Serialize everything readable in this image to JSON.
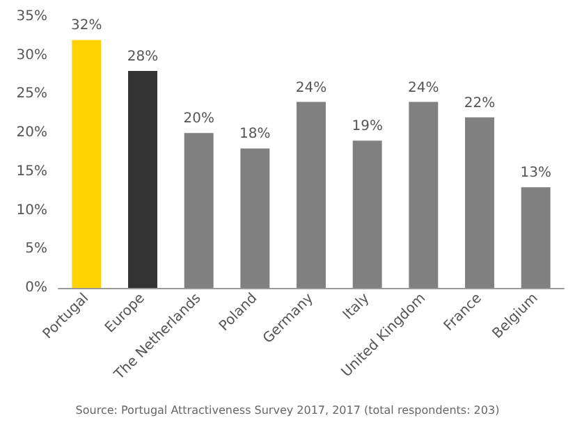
{
  "chart_data": {
    "type": "bar",
    "categories": [
      "Portugal",
      "Europe",
      "The Netherlands",
      "Poland",
      "Germany",
      "Italy",
      "United Kingdom",
      "France",
      "Belgium"
    ],
    "values": [
      32,
      28,
      20,
      18,
      24,
      19,
      24,
      22,
      13
    ],
    "colors": [
      "#ffd200",
      "#333333",
      "#808080",
      "#808080",
      "#808080",
      "#808080",
      "#808080",
      "#808080",
      "#808080"
    ],
    "value_labels": [
      "32%",
      "28%",
      "20%",
      "18%",
      "24%",
      "19%",
      "24%",
      "22%",
      "13%"
    ],
    "ylim": [
      0,
      35
    ],
    "yticks": [
      {
        "value": 0,
        "label": "0%"
      },
      {
        "value": 5,
        "label": "5%"
      },
      {
        "value": 10,
        "label": "10%"
      },
      {
        "value": 15,
        "label": "15%"
      },
      {
        "value": 20,
        "label": "20%"
      },
      {
        "value": 25,
        "label": "25%"
      },
      {
        "value": 30,
        "label": "30%"
      },
      {
        "value": 35,
        "label": "35%"
      }
    ],
    "annotations": [
      "Source: Portugal Attractiveness Survey 2017, 2017 (total respondents: 203)"
    ]
  }
}
